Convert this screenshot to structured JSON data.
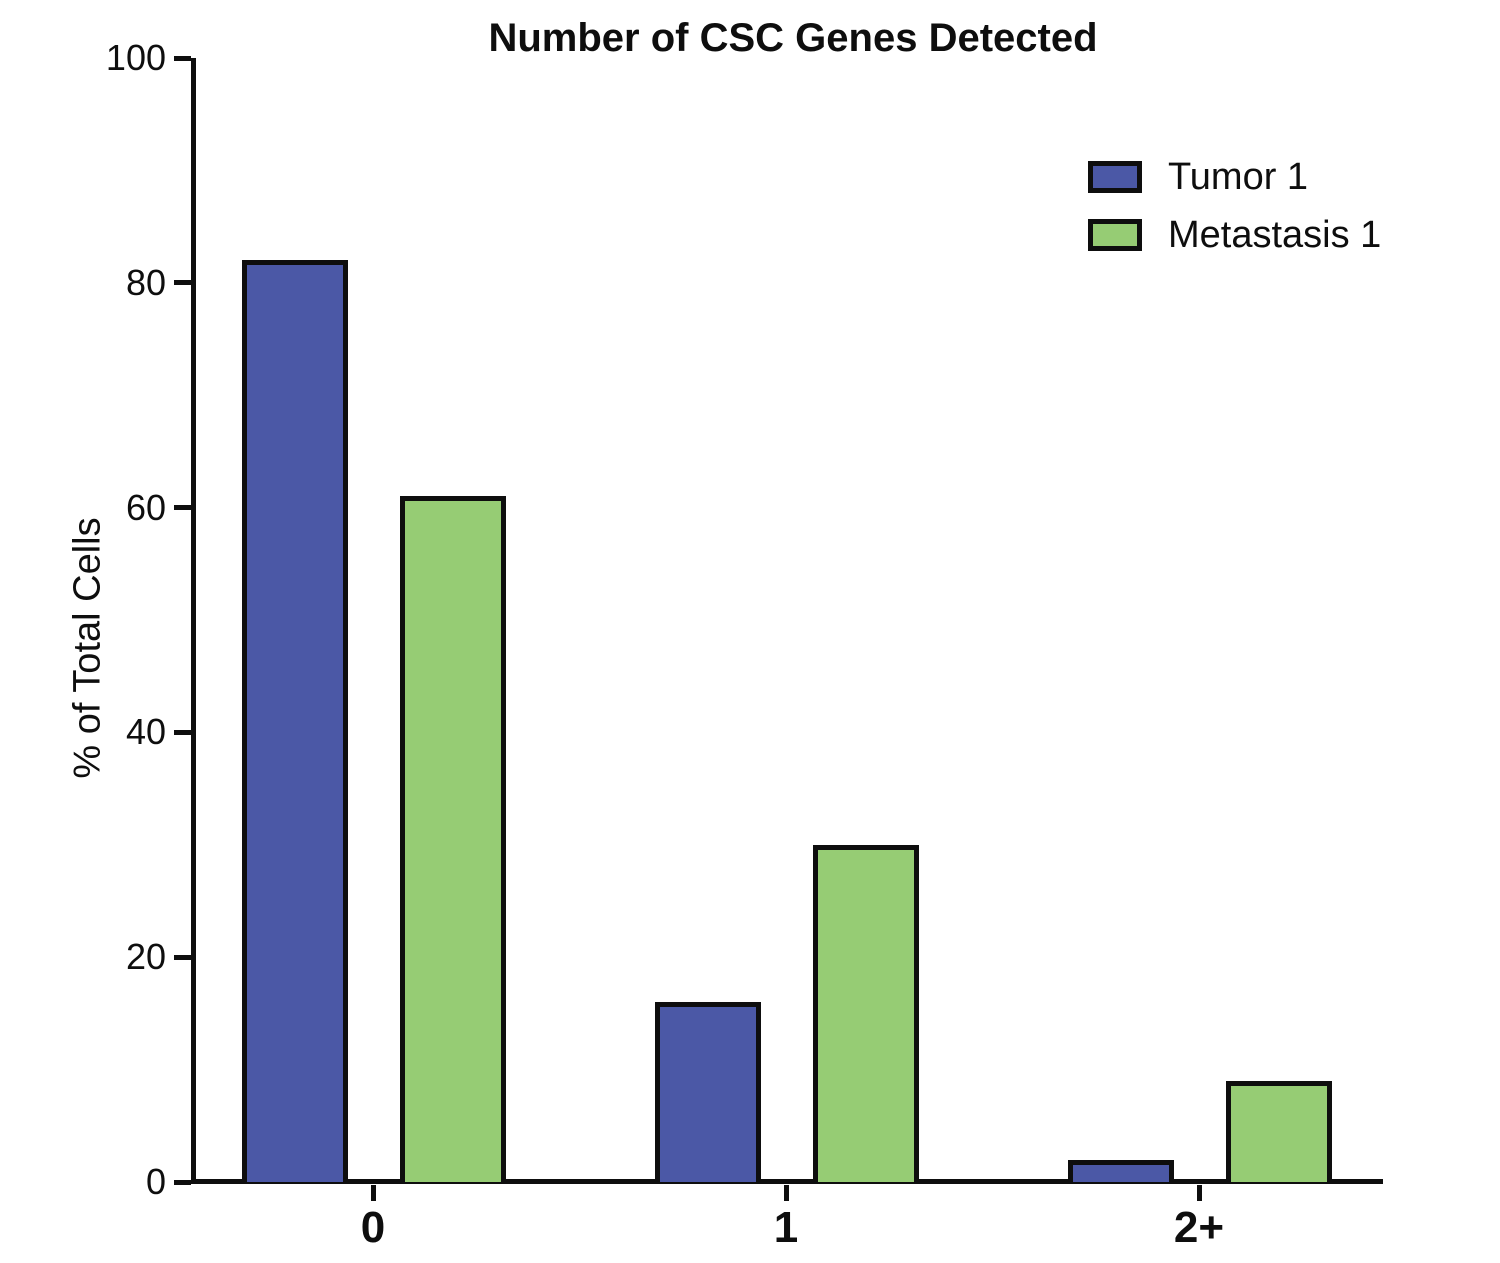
{
  "chart_data": {
    "type": "bar",
    "title": "Number of CSC Genes Detected",
    "xlabel": "",
    "ylabel": "% of Total Cells",
    "categories": [
      "0",
      "1",
      "2+"
    ],
    "series": [
      {
        "name": "Tumor 1",
        "color": "#4B58A6",
        "values": [
          82,
          16,
          2
        ]
      },
      {
        "name": "Metastasis 1",
        "color": "#96CC74",
        "values": [
          61,
          30,
          9
        ]
      }
    ],
    "ylim": [
      0,
      100
    ],
    "yticks": [
      0,
      20,
      40,
      60,
      80,
      100
    ],
    "grid": false,
    "legend_position": "top-right",
    "outline_color": "#0e0e0e"
  }
}
